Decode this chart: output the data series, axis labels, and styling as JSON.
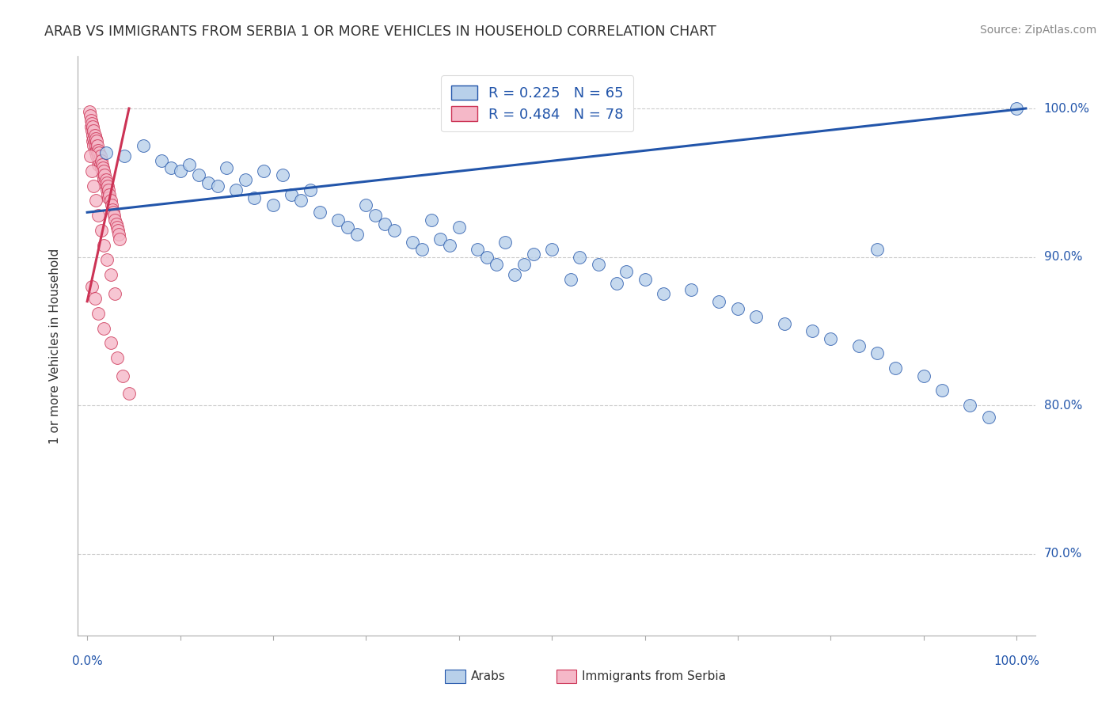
{
  "title": "ARAB VS IMMIGRANTS FROM SERBIA 1 OR MORE VEHICLES IN HOUSEHOLD CORRELATION CHART",
  "source": "Source: ZipAtlas.com",
  "ylabel": "1 or more Vehicles in Household",
  "yticks": [
    "70.0%",
    "80.0%",
    "90.0%",
    "100.0%"
  ],
  "ytick_vals": [
    0.7,
    0.8,
    0.9,
    1.0
  ],
  "legend_R": [
    "R = 0.225",
    "R = 0.484"
  ],
  "legend_N": [
    "N = 65",
    "N = 78"
  ],
  "arab_color": "#b8d0ea",
  "serbia_color": "#f5b8c8",
  "arab_line_color": "#2255aa",
  "serbia_line_color": "#cc3355",
  "background_color": "#ffffff",
  "grid_color": "#cccccc",
  "arab_scatter_x": [
    0.02,
    0.04,
    0.06,
    0.08,
    0.09,
    0.1,
    0.11,
    0.12,
    0.13,
    0.14,
    0.15,
    0.16,
    0.17,
    0.18,
    0.19,
    0.2,
    0.21,
    0.22,
    0.23,
    0.24,
    0.25,
    0.27,
    0.28,
    0.29,
    0.3,
    0.31,
    0.32,
    0.33,
    0.35,
    0.36,
    0.37,
    0.38,
    0.39,
    0.4,
    0.42,
    0.43,
    0.44,
    0.45,
    0.46,
    0.47,
    0.48,
    0.5,
    0.52,
    0.53,
    0.55,
    0.57,
    0.58,
    0.6,
    0.62,
    0.65,
    0.68,
    0.7,
    0.72,
    0.75,
    0.78,
    0.8,
    0.83,
    0.85,
    0.87,
    0.9,
    0.92,
    0.95,
    0.97,
    1.0,
    0.85
  ],
  "arab_scatter_y": [
    0.97,
    0.968,
    0.975,
    0.965,
    0.96,
    0.958,
    0.962,
    0.955,
    0.95,
    0.948,
    0.96,
    0.945,
    0.952,
    0.94,
    0.958,
    0.935,
    0.955,
    0.942,
    0.938,
    0.945,
    0.93,
    0.925,
    0.92,
    0.915,
    0.935,
    0.928,
    0.922,
    0.918,
    0.91,
    0.905,
    0.925,
    0.912,
    0.908,
    0.92,
    0.905,
    0.9,
    0.895,
    0.91,
    0.888,
    0.895,
    0.902,
    0.905,
    0.885,
    0.9,
    0.895,
    0.882,
    0.89,
    0.885,
    0.875,
    0.878,
    0.87,
    0.865,
    0.86,
    0.855,
    0.85,
    0.845,
    0.84,
    0.835,
    0.825,
    0.82,
    0.81,
    0.8,
    0.792,
    1.0,
    0.905
  ],
  "serbia_scatter_x": [
    0.002,
    0.003,
    0.004,
    0.004,
    0.005,
    0.005,
    0.006,
    0.006,
    0.006,
    0.007,
    0.007,
    0.007,
    0.008,
    0.008,
    0.008,
    0.009,
    0.009,
    0.009,
    0.01,
    0.01,
    0.01,
    0.011,
    0.011,
    0.012,
    0.012,
    0.012,
    0.013,
    0.013,
    0.014,
    0.014,
    0.015,
    0.015,
    0.016,
    0.016,
    0.017,
    0.017,
    0.018,
    0.018,
    0.019,
    0.019,
    0.02,
    0.02,
    0.021,
    0.021,
    0.022,
    0.022,
    0.023,
    0.023,
    0.024,
    0.025,
    0.026,
    0.027,
    0.028,
    0.029,
    0.03,
    0.031,
    0.032,
    0.033,
    0.034,
    0.035,
    0.003,
    0.005,
    0.007,
    0.009,
    0.012,
    0.015,
    0.018,
    0.021,
    0.025,
    0.03,
    0.005,
    0.008,
    0.012,
    0.018,
    0.025,
    0.032,
    0.038,
    0.045
  ],
  "serbia_scatter_y": [
    0.998,
    0.995,
    0.992,
    0.988,
    0.99,
    0.985,
    0.988,
    0.982,
    0.978,
    0.985,
    0.98,
    0.975,
    0.982,
    0.978,
    0.972,
    0.98,
    0.975,
    0.97,
    0.978,
    0.972,
    0.968,
    0.975,
    0.97,
    0.972,
    0.968,
    0.962,
    0.97,
    0.965,
    0.968,
    0.962,
    0.965,
    0.96,
    0.962,
    0.958,
    0.96,
    0.955,
    0.958,
    0.952,
    0.955,
    0.95,
    0.952,
    0.948,
    0.95,
    0.945,
    0.948,
    0.942,
    0.945,
    0.94,
    0.942,
    0.938,
    0.935,
    0.932,
    0.93,
    0.928,
    0.925,
    0.922,
    0.92,
    0.918,
    0.915,
    0.912,
    0.968,
    0.958,
    0.948,
    0.938,
    0.928,
    0.918,
    0.908,
    0.898,
    0.888,
    0.875,
    0.88,
    0.872,
    0.862,
    0.852,
    0.842,
    0.832,
    0.82,
    0.808
  ]
}
